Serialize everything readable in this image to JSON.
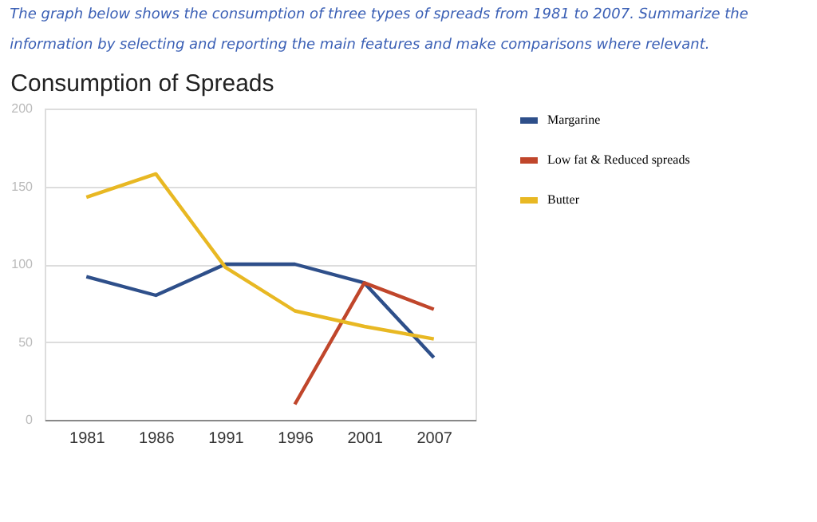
{
  "chart_data": {
    "type": "line",
    "title": "Consumption of Spreads",
    "annotations": [
      "The graph below shows the consumption of three types of spreads from 1981 to 2007. Summarize the information by selecting and reporting the main features and make comparisons where relevant."
    ],
    "categories": [
      "1981",
      "1986",
      "1991",
      "1996",
      "2001",
      "2007"
    ],
    "series": [
      {
        "name": "Margarine",
        "color": "#2e4f8a",
        "values": [
          92,
          80,
          100,
          100,
          88,
          40
        ]
      },
      {
        "name": "Low fat & Reduced spreads",
        "color": "#c0462b",
        "values": [
          null,
          null,
          null,
          10,
          88,
          71
        ]
      },
      {
        "name": "Butter",
        "color": "#e8b823",
        "values": [
          143,
          158,
          98,
          70,
          60,
          52
        ]
      }
    ],
    "ylim": [
      0,
      200
    ],
    "yticks": [
      0,
      50,
      100,
      150,
      200
    ],
    "grid": "y",
    "legend": "top right",
    "marker": "none",
    "line_style": "solid"
  }
}
